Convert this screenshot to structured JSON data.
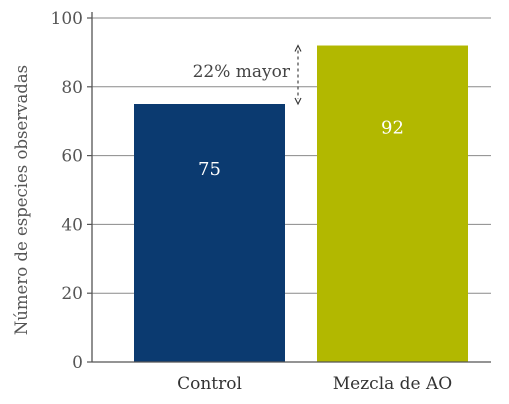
{
  "chart_data": {
    "type": "bar",
    "categories": [
      "Control",
      "Mezcla de AO"
    ],
    "values": [
      75,
      92
    ],
    "value_labels": [
      "75",
      "92"
    ],
    "colors": [
      "#0b3a70",
      "#b2b800"
    ],
    "ylabel": "Número de especies observadas",
    "xlabel": "",
    "ylim": [
      0,
      100
    ],
    "yticks": [
      0,
      20,
      40,
      60,
      80,
      100
    ],
    "ytick_labels": [
      "0",
      "20",
      "40",
      "60",
      "80",
      "100"
    ],
    "grid": true,
    "annotation": {
      "text": "22% mayor",
      "from_value": 75,
      "to_value": 92
    }
  }
}
